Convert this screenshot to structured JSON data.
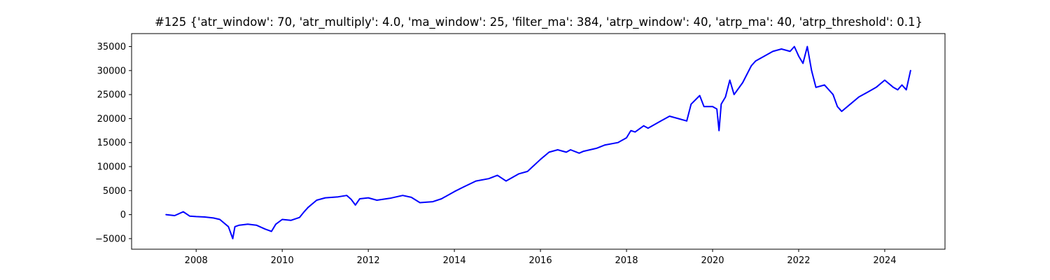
{
  "chart_data": {
    "type": "line",
    "title": "#125 {'atr_window': 70, 'atr_multiply': 4.0, 'ma_window': 25, 'filter_ma': 384, 'atrp_window': 40, 'atrp_ma': 40, 'atrp_threshold': 0.1}",
    "xlabel": "",
    "ylabel": "",
    "xlim": [
      2006.5,
      2025.4
    ],
    "ylim": [
      -7200,
      37700
    ],
    "x_ticks": [
      2008,
      2010,
      2012,
      2014,
      2016,
      2018,
      2020,
      2022,
      2024
    ],
    "y_ticks": [
      -5000,
      0,
      5000,
      10000,
      15000,
      20000,
      25000,
      30000,
      35000
    ],
    "grid": false,
    "series": [
      {
        "color": "#0000ff",
        "x": [
          2007.3,
          2007.5,
          2007.7,
          2007.85,
          2008.0,
          2008.2,
          2008.4,
          2008.55,
          2008.75,
          2008.85,
          2008.9,
          2009.0,
          2009.2,
          2009.4,
          2009.6,
          2009.75,
          2009.85,
          2010.0,
          2010.2,
          2010.4,
          2010.5,
          2010.6,
          2010.8,
          2011.0,
          2011.3,
          2011.5,
          2011.6,
          2011.7,
          2011.8,
          2012.0,
          2012.2,
          2012.5,
          2012.8,
          2013.0,
          2013.2,
          2013.5,
          2013.7,
          2014.0,
          2014.2,
          2014.5,
          2014.8,
          2015.0,
          2015.2,
          2015.5,
          2015.7,
          2016.0,
          2016.2,
          2016.4,
          2016.6,
          2016.7,
          2016.9,
          2017.0,
          2017.3,
          2017.5,
          2017.8,
          2018.0,
          2018.1,
          2018.2,
          2018.4,
          2018.5,
          2018.8,
          2019.0,
          2019.2,
          2019.4,
          2019.5,
          2019.7,
          2019.8,
          2020.0,
          2020.1,
          2020.15,
          2020.2,
          2020.3,
          2020.4,
          2020.5,
          2020.7,
          2020.9,
          2021.0,
          2021.2,
          2021.4,
          2021.6,
          2021.8,
          2021.9,
          2022.0,
          2022.1,
          2022.2,
          2022.3,
          2022.4,
          2022.6,
          2022.8,
          2022.9,
          2023.0,
          2023.2,
          2023.4,
          2023.6,
          2023.8,
          2024.0,
          2024.2,
          2024.3,
          2024.4,
          2024.5,
          2024.6
        ],
        "y": [
          0,
          -200,
          600,
          -300,
          -400,
          -500,
          -700,
          -1000,
          -2500,
          -5000,
          -2500,
          -2200,
          -2000,
          -2200,
          -3000,
          -3500,
          -2000,
          -1000,
          -1200,
          -600,
          500,
          1500,
          3000,
          3500,
          3700,
          4000,
          3200,
          2000,
          3300,
          3500,
          3000,
          3400,
          4000,
          3600,
          2500,
          2700,
          3300,
          4800,
          5700,
          7000,
          7500,
          8200,
          7000,
          8500,
          9000,
          11500,
          13000,
          13500,
          13000,
          13500,
          12800,
          13200,
          13800,
          14500,
          15000,
          16000,
          17500,
          17200,
          18500,
          18000,
          19500,
          20500,
          20000,
          19500,
          23000,
          24800,
          22500,
          22500,
          22000,
          17500,
          23000,
          24500,
          28000,
          25000,
          27500,
          31000,
          32000,
          33000,
          34000,
          34500,
          34000,
          35000,
          33000,
          31500,
          35000,
          30000,
          26500,
          27000,
          25000,
          22500,
          21500,
          23000,
          24500,
          25500,
          26500,
          28000,
          26500,
          26000,
          27000,
          26000,
          30000
        ]
      }
    ]
  }
}
